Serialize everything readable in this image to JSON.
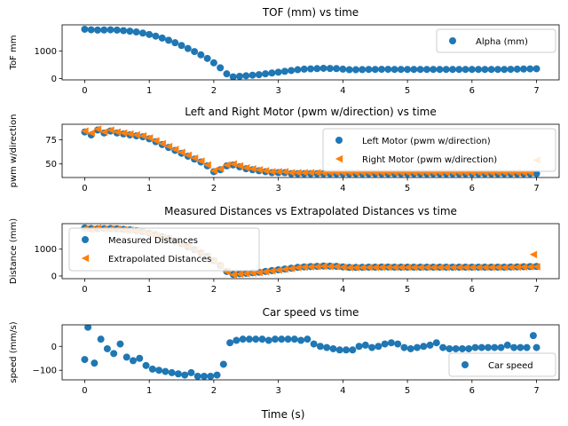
{
  "colors": {
    "blue": "#1f77b4",
    "orange": "#ff7f0e",
    "axis": "#000000",
    "legend_border": "#cccccc"
  },
  "figure_xlabel": "Time (s)",
  "chart_data": [
    {
      "type": "scatter",
      "title": "TOF (mm) vs time",
      "ylabel": "ToF mm",
      "xlim": [
        -0.35,
        7.35
      ],
      "ylim": [
        -50,
        1950
      ],
      "xticks": [
        0,
        1,
        2,
        3,
        4,
        5,
        6,
        7
      ],
      "yticks": [
        0,
        1000
      ],
      "grid": false,
      "legend": {
        "position": "right"
      },
      "series": [
        {
          "name": "Alpha (mm)",
          "color": "blue",
          "marker": "circle",
          "x": [
            0.0,
            0.1,
            0.2,
            0.3,
            0.4,
            0.5,
            0.6,
            0.7,
            0.8,
            0.9,
            1.0,
            1.1,
            1.2,
            1.3,
            1.4,
            1.5,
            1.6,
            1.7,
            1.8,
            1.9,
            2.0,
            2.1,
            2.2,
            2.3,
            2.4,
            2.5,
            2.6,
            2.7,
            2.8,
            2.9,
            3.0,
            3.1,
            3.2,
            3.3,
            3.4,
            3.5,
            3.6,
            3.7,
            3.8,
            3.9,
            4.0,
            4.1,
            4.2,
            4.3,
            4.4,
            4.5,
            4.6,
            4.7,
            4.8,
            4.9,
            5.0,
            5.1,
            5.2,
            5.3,
            5.4,
            5.5,
            5.6,
            5.7,
            5.8,
            5.9,
            6.0,
            6.1,
            6.2,
            6.3,
            6.4,
            6.5,
            6.6,
            6.7,
            6.8,
            6.9,
            7.0
          ],
          "y": [
            1790,
            1770,
            1760,
            1765,
            1770,
            1760,
            1740,
            1720,
            1690,
            1650,
            1600,
            1540,
            1470,
            1390,
            1300,
            1200,
            1090,
            980,
            860,
            730,
            570,
            390,
            170,
            60,
            80,
            100,
            120,
            140,
            170,
            200,
            230,
            260,
            290,
            320,
            340,
            350,
            360,
            370,
            365,
            360,
            340,
            320,
            320,
            325,
            330,
            330,
            335,
            335,
            330,
            330,
            330,
            330,
            330,
            330,
            330,
            330,
            330,
            330,
            330,
            330,
            330,
            330,
            330,
            330,
            330,
            330,
            335,
            340,
            345,
            350,
            355
          ]
        }
      ]
    },
    {
      "type": "scatter",
      "title": "Left and Right Motor (pwm w/direction) vs time",
      "ylabel": "pwm w/direction",
      "xlim": [
        -0.35,
        7.35
      ],
      "ylim": [
        36,
        91
      ],
      "xticks": [
        0,
        1,
        2,
        3,
        4,
        5,
        6,
        7
      ],
      "yticks": [
        50,
        75
      ],
      "grid": false,
      "legend": {
        "position": "right"
      },
      "series": [
        {
          "name": "Left Motor (pwm w/direction)",
          "color": "blue",
          "marker": "circle",
          "x": [
            0.0,
            0.1,
            0.2,
            0.3,
            0.4,
            0.5,
            0.6,
            0.7,
            0.8,
            0.9,
            1.0,
            1.1,
            1.2,
            1.3,
            1.4,
            1.5,
            1.6,
            1.7,
            1.8,
            1.9,
            2.0,
            2.1,
            2.2,
            2.3,
            2.4,
            2.5,
            2.6,
            2.7,
            2.8,
            2.9,
            3.0,
            3.1,
            3.2,
            3.3,
            3.4,
            3.5,
            3.6,
            3.7,
            3.8,
            3.9,
            4.0,
            4.1,
            4.2,
            4.3,
            4.4,
            4.5,
            4.6,
            4.7,
            4.8,
            4.9,
            5.0,
            5.1,
            5.2,
            5.3,
            5.4,
            5.5,
            5.6,
            5.7,
            5.8,
            5.9,
            6.0,
            6.1,
            6.2,
            6.3,
            6.4,
            6.5,
            6.6,
            6.7,
            6.8,
            6.9,
            7.0
          ],
          "y": [
            83,
            80,
            85,
            82,
            84,
            82,
            81,
            80,
            79,
            78,
            76,
            73,
            70,
            67,
            64,
            61,
            58,
            55,
            52,
            48,
            42,
            44,
            48,
            49,
            47,
            45,
            44,
            43,
            42,
            41,
            41,
            41,
            40,
            40,
            40,
            40,
            40,
            40,
            40,
            40,
            40,
            40,
            40,
            40,
            40,
            40,
            40,
            40,
            40,
            40,
            40,
            40,
            40,
            40,
            40,
            40,
            40,
            40,
            40,
            40,
            40,
            40,
            40,
            40,
            40,
            40,
            40,
            40,
            40,
            40,
            40
          ]
        },
        {
          "name": "Right Motor (pwm w/direction)",
          "color": "orange",
          "marker": "triangle-left",
          "x": [
            0.0,
            0.1,
            0.2,
            0.3,
            0.4,
            0.5,
            0.6,
            0.7,
            0.8,
            0.9,
            1.0,
            1.1,
            1.2,
            1.3,
            1.4,
            1.5,
            1.6,
            1.7,
            1.8,
            1.9,
            2.0,
            2.1,
            2.2,
            2.3,
            2.4,
            2.5,
            2.6,
            2.7,
            2.8,
            2.9,
            3.0,
            3.1,
            3.2,
            3.3,
            3.4,
            3.5,
            3.6,
            3.7,
            3.8,
            3.9,
            4.0,
            4.1,
            4.2,
            4.3,
            4.4,
            4.5,
            4.6,
            4.7,
            4.8,
            4.9,
            5.0,
            5.1,
            5.2,
            5.3,
            5.4,
            5.5,
            5.6,
            5.7,
            5.8,
            5.9,
            6.0,
            6.1,
            6.2,
            6.3,
            6.4,
            6.5,
            6.6,
            6.7,
            6.8,
            6.9,
            7.0
          ],
          "y": [
            84,
            82,
            86,
            83,
            85,
            83,
            82,
            81,
            80,
            79,
            77,
            74,
            71,
            68,
            65,
            62,
            59,
            56,
            53,
            49,
            43,
            45,
            49,
            50,
            48,
            46,
            45,
            44,
            43,
            42,
            42,
            42,
            41,
            41,
            41,
            41,
            41,
            41,
            41,
            41,
            41,
            41,
            41,
            41,
            41,
            41,
            41,
            41,
            41,
            41,
            41,
            41,
            41,
            41,
            41,
            41,
            41,
            41,
            41,
            41,
            41,
            41,
            41,
            41,
            41,
            41,
            41,
            41,
            41,
            41,
            54
          ]
        }
      ]
    },
    {
      "type": "scatter",
      "title": "Measured Distances vs Extrapolated Distances vs time",
      "ylabel": "Distance (mm)",
      "xlim": [
        -0.35,
        7.35
      ],
      "ylim": [
        -100,
        1950
      ],
      "xticks": [
        0,
        1,
        2,
        3,
        4,
        5,
        6,
        7
      ],
      "yticks": [
        0,
        1000
      ],
      "grid": false,
      "legend": {
        "position": "left"
      },
      "series": [
        {
          "name": "Measured Distances",
          "color": "blue",
          "marker": "circle",
          "x": [
            0.0,
            0.1,
            0.2,
            0.3,
            0.4,
            0.5,
            0.6,
            0.7,
            0.8,
            0.9,
            1.0,
            1.1,
            1.2,
            1.3,
            1.4,
            1.5,
            1.6,
            1.7,
            1.8,
            1.9,
            2.0,
            2.1,
            2.2,
            2.3,
            2.4,
            2.5,
            2.6,
            2.7,
            2.8,
            2.9,
            3.0,
            3.1,
            3.2,
            3.3,
            3.4,
            3.5,
            3.6,
            3.7,
            3.8,
            3.9,
            4.0,
            4.1,
            4.2,
            4.3,
            4.4,
            4.5,
            4.6,
            4.7,
            4.8,
            4.9,
            5.0,
            5.1,
            5.2,
            5.3,
            5.4,
            5.5,
            5.6,
            5.7,
            5.8,
            5.9,
            6.0,
            6.1,
            6.2,
            6.3,
            6.4,
            6.5,
            6.6,
            6.7,
            6.8,
            6.9,
            7.0
          ],
          "y": [
            1790,
            1770,
            1760,
            1765,
            1770,
            1760,
            1740,
            1720,
            1690,
            1650,
            1600,
            1540,
            1470,
            1390,
            1300,
            1200,
            1090,
            980,
            860,
            730,
            570,
            390,
            170,
            60,
            80,
            100,
            120,
            140,
            170,
            200,
            230,
            260,
            290,
            320,
            340,
            350,
            360,
            370,
            365,
            360,
            340,
            320,
            320,
            325,
            330,
            330,
            335,
            335,
            330,
            330,
            330,
            330,
            330,
            330,
            330,
            330,
            330,
            330,
            330,
            330,
            330,
            330,
            330,
            330,
            330,
            330,
            335,
            340,
            345,
            350,
            355
          ]
        },
        {
          "name": "Extrapolated Distances",
          "color": "orange",
          "marker": "triangle-left",
          "x": [
            0.0,
            0.1,
            0.2,
            0.3,
            0.4,
            0.5,
            0.6,
            0.7,
            0.8,
            0.9,
            1.0,
            1.1,
            1.2,
            1.3,
            1.4,
            1.5,
            1.6,
            1.7,
            1.8,
            1.9,
            2.0,
            2.1,
            2.2,
            2.3,
            2.4,
            2.5,
            2.6,
            2.7,
            2.8,
            2.9,
            3.0,
            3.1,
            3.2,
            3.3,
            3.4,
            3.5,
            3.6,
            3.7,
            3.8,
            3.9,
            4.0,
            4.1,
            4.2,
            4.3,
            4.4,
            4.5,
            4.6,
            4.7,
            4.8,
            4.9,
            5.0,
            5.1,
            5.2,
            5.3,
            5.4,
            5.5,
            5.6,
            5.7,
            5.8,
            5.9,
            6.0,
            6.1,
            6.2,
            6.3,
            6.4,
            6.5,
            6.6,
            6.7,
            6.8,
            6.9,
            6.95,
            7.0
          ],
          "y": [
            1760,
            1740,
            1790,
            1750,
            1760,
            1750,
            1730,
            1710,
            1680,
            1640,
            1590,
            1530,
            1460,
            1380,
            1290,
            1190,
            1080,
            970,
            850,
            720,
            560,
            380,
            160,
            50,
            70,
            90,
            110,
            130,
            160,
            190,
            220,
            250,
            280,
            310,
            330,
            340,
            350,
            360,
            355,
            350,
            330,
            310,
            310,
            315,
            320,
            320,
            325,
            325,
            320,
            320,
            320,
            320,
            320,
            320,
            320,
            320,
            320,
            320,
            320,
            320,
            320,
            320,
            320,
            320,
            320,
            320,
            325,
            330,
            335,
            340,
            800,
            345
          ]
        }
      ]
    },
    {
      "type": "scatter",
      "title": "Car speed vs time",
      "ylabel": "speed (mm/s)",
      "xlim": [
        -0.35,
        7.35
      ],
      "ylim": [
        -140,
        90
      ],
      "xticks": [
        0,
        1,
        2,
        3,
        4,
        5,
        6,
        7
      ],
      "yticks": [
        -100,
        0
      ],
      "grid": false,
      "legend": {
        "position": "right"
      },
      "series": [
        {
          "name": "Car speed",
          "color": "blue",
          "marker": "circle",
          "x": [
            0.0,
            0.05,
            0.15,
            0.25,
            0.35,
            0.45,
            0.55,
            0.65,
            0.75,
            0.85,
            0.95,
            1.05,
            1.15,
            1.25,
            1.35,
            1.45,
            1.55,
            1.65,
            1.75,
            1.85,
            1.95,
            2.05,
            2.15,
            2.25,
            2.35,
            2.45,
            2.55,
            2.65,
            2.75,
            2.85,
            2.95,
            3.05,
            3.15,
            3.25,
            3.35,
            3.45,
            3.55,
            3.65,
            3.75,
            3.85,
            3.95,
            4.05,
            4.15,
            4.25,
            4.35,
            4.45,
            4.55,
            4.65,
            4.75,
            4.85,
            4.95,
            5.05,
            5.15,
            5.25,
            5.35,
            5.45,
            5.55,
            5.65,
            5.75,
            5.85,
            5.95,
            6.05,
            6.15,
            6.25,
            6.35,
            6.45,
            6.55,
            6.65,
            6.75,
            6.85,
            6.95,
            7.0
          ],
          "y": [
            -55,
            80,
            -70,
            30,
            -10,
            -30,
            10,
            -45,
            -60,
            -50,
            -80,
            -95,
            -100,
            -105,
            -110,
            -115,
            -120,
            -110,
            -125,
            -125,
            -125,
            -120,
            -75,
            15,
            25,
            30,
            30,
            30,
            30,
            25,
            30,
            30,
            30,
            30,
            25,
            30,
            10,
            0,
            -5,
            -10,
            -15,
            -15,
            -15,
            0,
            5,
            -5,
            0,
            10,
            15,
            10,
            -5,
            -10,
            -5,
            0,
            5,
            15,
            -5,
            -10,
            -10,
            -10,
            -10,
            -5,
            -5,
            -5,
            -5,
            -5,
            5,
            -5,
            -5,
            -5,
            45,
            -5
          ]
        }
      ]
    }
  ]
}
